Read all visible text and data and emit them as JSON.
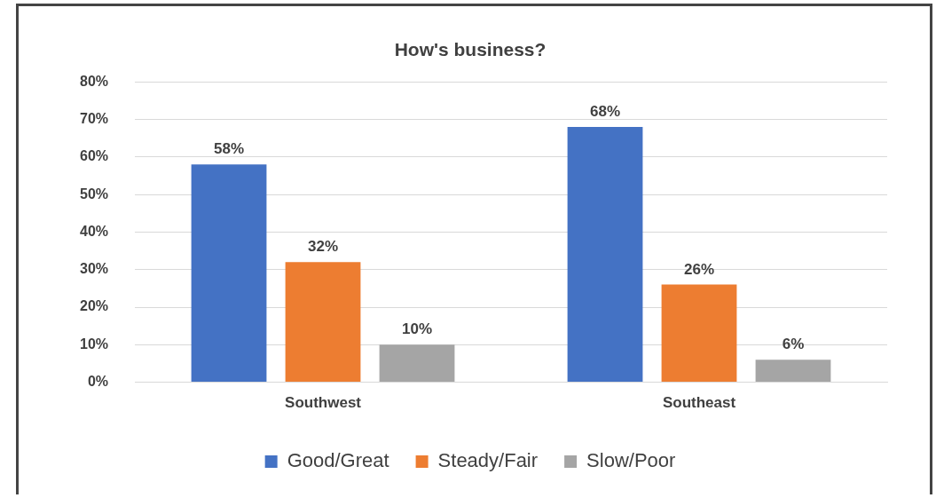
{
  "chart_data": {
    "type": "bar",
    "title": "How's business?",
    "categories": [
      "Southwest",
      "Southeast"
    ],
    "series": [
      {
        "name": "Good/Great",
        "color": "#4472c4",
        "values": [
          58,
          68
        ],
        "value_labels": [
          "58%",
          "68%"
        ]
      },
      {
        "name": "Steady/Fair",
        "color": "#ed7d31",
        "values": [
          32,
          26
        ],
        "value_labels": [
          "32%",
          "26%"
        ]
      },
      {
        "name": "Slow/Poor",
        "color": "#a5a5a5",
        "values": [
          10,
          6
        ],
        "value_labels": [
          "10%",
          "6%"
        ]
      }
    ],
    "ylim": [
      0,
      80
    ],
    "yticks": [
      {
        "value": 0,
        "label": "0%"
      },
      {
        "value": 10,
        "label": "10%"
      },
      {
        "value": 20,
        "label": "20%"
      },
      {
        "value": 30,
        "label": "30%"
      },
      {
        "value": 40,
        "label": "40%"
      },
      {
        "value": 50,
        "label": "50%"
      },
      {
        "value": 60,
        "label": "60%"
      },
      {
        "value": 70,
        "label": "70%"
      },
      {
        "value": 80,
        "label": "80%"
      }
    ],
    "grid": "y",
    "legend": "bottom"
  }
}
